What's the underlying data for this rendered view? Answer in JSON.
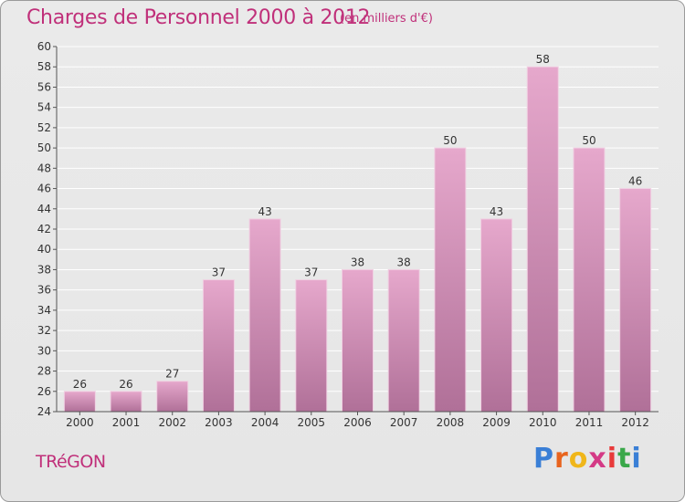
{
  "header": {
    "title": "Charges de Personnel 2000 à 2012",
    "subtitle": "(en milliers d'€)"
  },
  "footer": {
    "commune": "TRéGON",
    "logo_letters": [
      "P",
      "r",
      "o",
      "x",
      "i",
      "t",
      "i"
    ],
    "logo_colors": [
      "#3a7fd6",
      "#e8641e",
      "#f0b61a",
      "#d43a86",
      "#e83a3a",
      "#3aa84a",
      "#3a7fd6"
    ]
  },
  "colors": {
    "bar_top": "#e6a8cc",
    "bar_bottom": "#b07098",
    "accent": "#c0307a",
    "grid": "#ffffff",
    "axis_text": "#333333"
  },
  "chart_data": {
    "type": "bar",
    "categories": [
      "2000",
      "2001",
      "2002",
      "2003",
      "2004",
      "2005",
      "2006",
      "2007",
      "2008",
      "2009",
      "2010",
      "2011",
      "2012"
    ],
    "values": [
      26,
      26,
      27,
      37,
      43,
      37,
      38,
      38,
      50,
      43,
      58,
      50,
      46
    ],
    "ylim": [
      24,
      60
    ],
    "ytick_step": 2,
    "grid": true
  }
}
